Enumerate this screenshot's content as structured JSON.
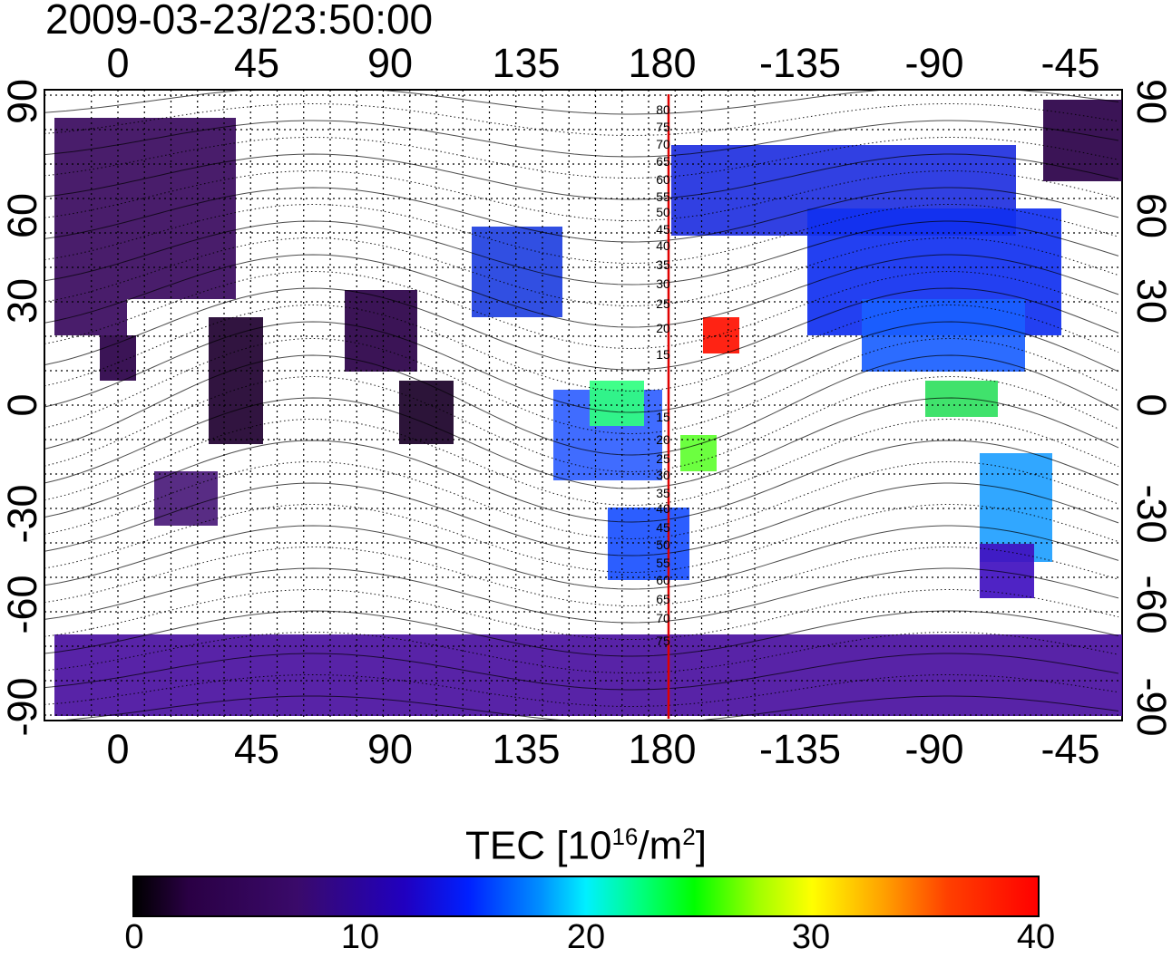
{
  "title": "2009-03-23/23:50:00",
  "axes": {
    "top_ticks": [
      "0",
      "45",
      "90",
      "135",
      "180",
      "-135",
      "-90",
      "-45"
    ],
    "bottom_ticks": [
      "0",
      "45",
      "90",
      "135",
      "180",
      "-135",
      "-90",
      "-45"
    ],
    "left_ticks": [
      "90",
      "60",
      "30",
      "0",
      "-30",
      "-60",
      "-90"
    ],
    "right_ticks": [
      "90",
      "60",
      "30",
      "0",
      "-30",
      "-60",
      "-90"
    ],
    "grid": "dotted"
  },
  "meridian_labels": [
    "80",
    "75",
    "70",
    "65",
    "60",
    "55",
    "50",
    "45",
    "40",
    "35",
    "30",
    "25",
    "20",
    "15",
    "15",
    "20",
    "25",
    "30",
    "35",
    "40",
    "45",
    "50",
    "55",
    "60",
    "65",
    "70",
    "75"
  ],
  "colorbar": {
    "title_main": "TEC  [10",
    "title_exp": "16",
    "title_mid": "/m",
    "title_exp2": "2",
    "title_end": "]",
    "labels": [
      "0",
      "10",
      "20",
      "30",
      "40"
    ],
    "range": [
      0,
      40
    ]
  },
  "colors": {
    "meridian": "#e00000",
    "low": "#3a0a6a",
    "mid": "#0040ff",
    "high": "#ff0000"
  }
}
